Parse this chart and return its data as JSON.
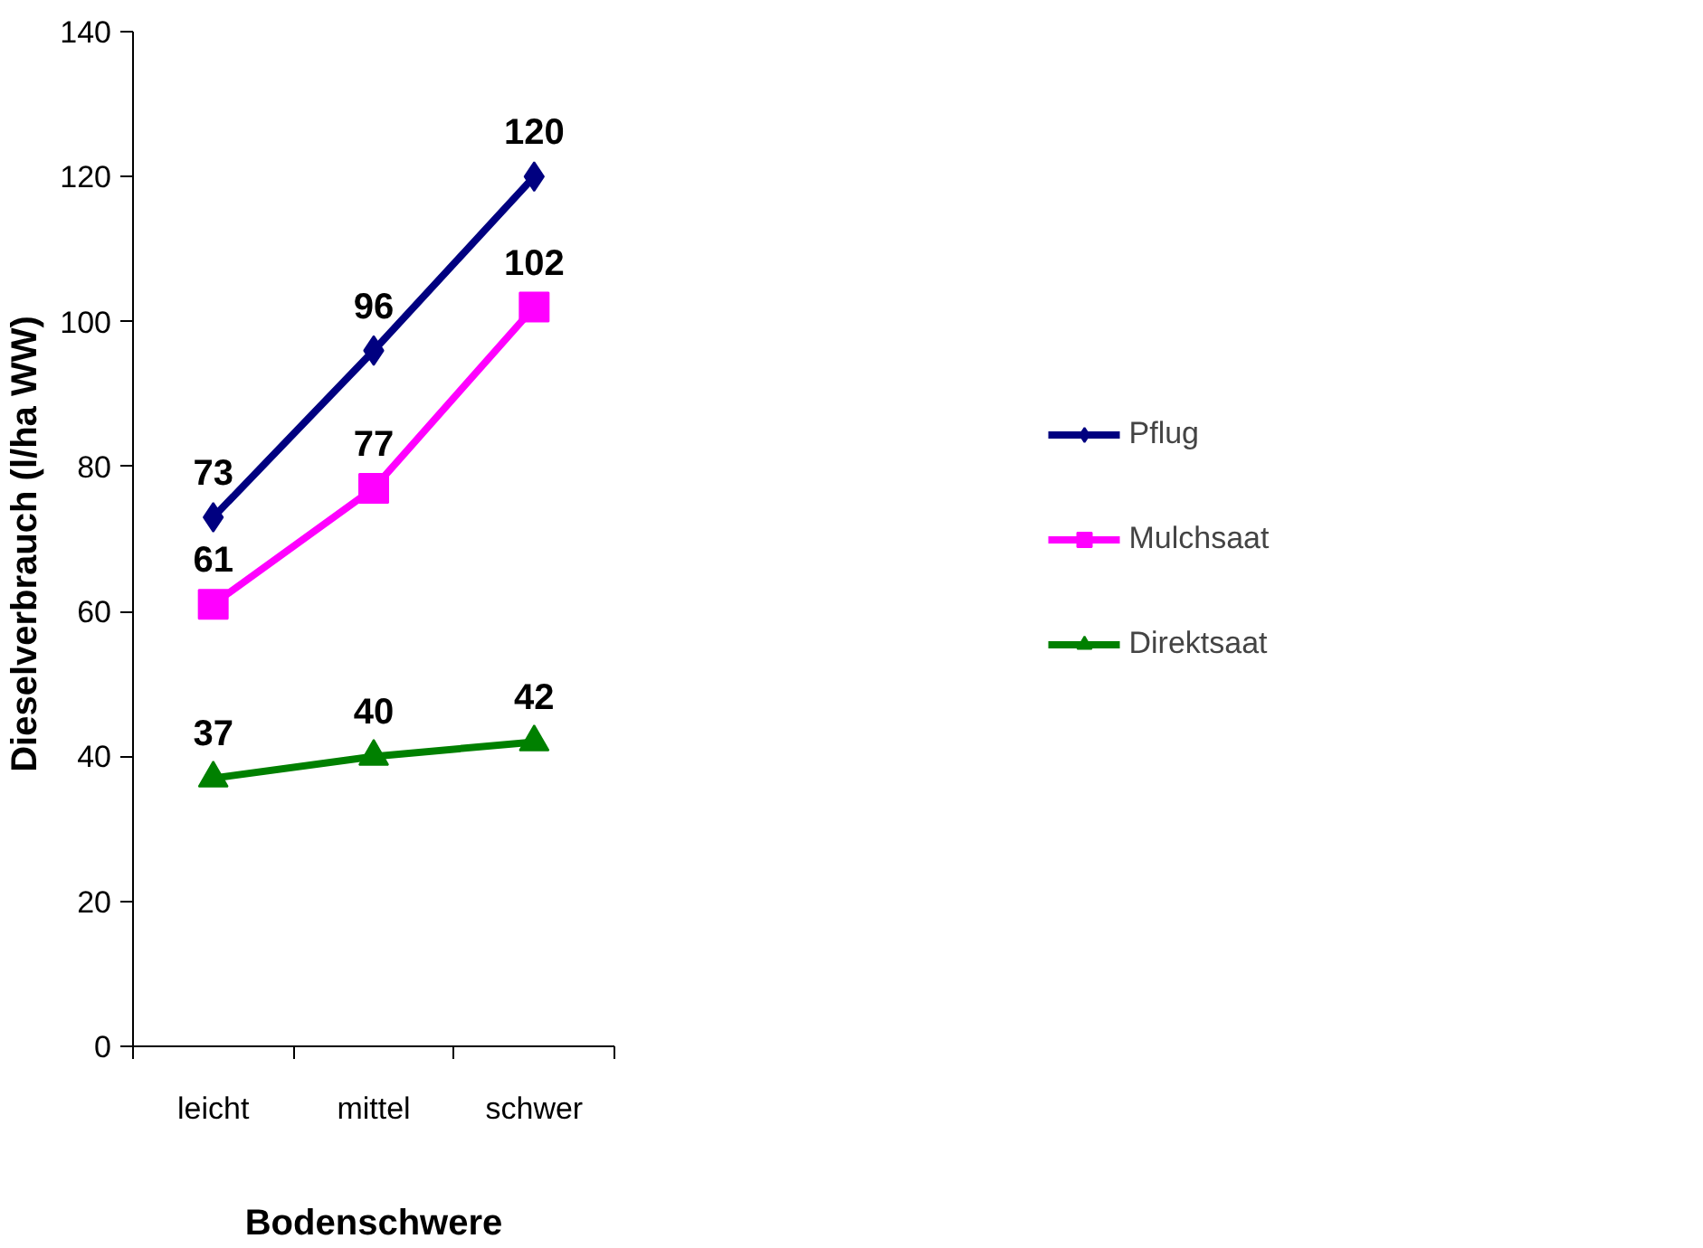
{
  "chart_data": {
    "type": "line",
    "xlabel": "Bodenschwere",
    "ylabel": "Dieselverbrauch  (l/ha WW)",
    "categories": [
      "leicht",
      "mittel",
      "schwer"
    ],
    "series": [
      {
        "name": "Pflug",
        "color": "#000080",
        "marker": "diamond",
        "values": [
          73,
          96,
          120
        ]
      },
      {
        "name": "Mulchsaat",
        "color": "#ff00ff",
        "marker": "square",
        "values": [
          61,
          77,
          102
        ]
      },
      {
        "name": "Direktsaat",
        "color": "#008000",
        "marker": "triangle",
        "values": [
          37,
          40,
          42
        ]
      }
    ],
    "ylim": [
      0,
      140
    ],
    "yticks": [
      0,
      20,
      40,
      60,
      80,
      100,
      120,
      140
    ],
    "data_labels": true,
    "grid": false,
    "legend": "right",
    "line_style": "solid"
  }
}
